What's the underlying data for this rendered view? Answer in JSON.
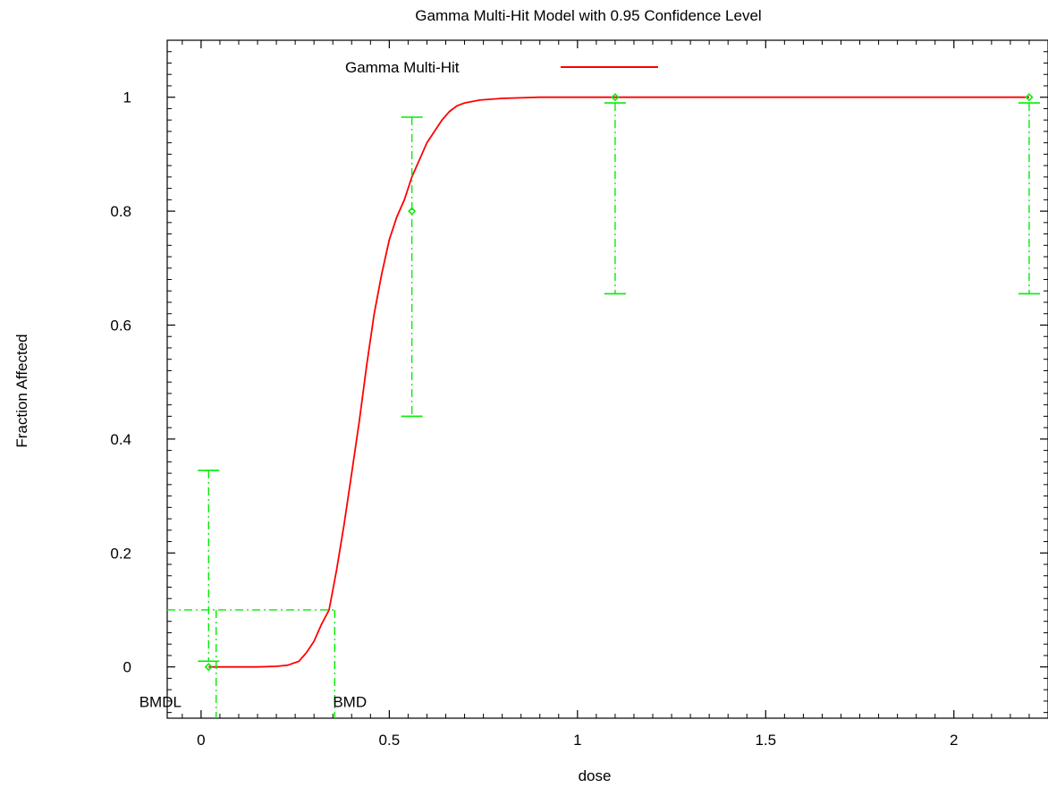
{
  "colors": {
    "fit": "#ff0000",
    "data": "#00ee00",
    "axis": "#000000",
    "background": "#ffffff"
  },
  "chart_data": {
    "type": "line",
    "title": "Gamma Multi-Hit Model with 0.95 Confidence Level",
    "xlabel": "dose",
    "ylabel": "Fraction Affected",
    "xlim": [
      -0.09,
      2.25
    ],
    "ylim": [
      -0.09,
      1.1
    ],
    "grid": false,
    "legend_position": "top",
    "x_ticks": [
      {
        "value": 0,
        "label": "0"
      },
      {
        "value": 0.5,
        "label": "0.5"
      },
      {
        "value": 1,
        "label": "1"
      },
      {
        "value": 1.5,
        "label": "1.5"
      },
      {
        "value": 2,
        "label": "2"
      }
    ],
    "y_ticks": [
      {
        "value": 0,
        "label": "0"
      },
      {
        "value": 0.2,
        "label": "0.2"
      },
      {
        "value": 0.4,
        "label": "0.4"
      },
      {
        "value": 0.6,
        "label": "0.6"
      },
      {
        "value": 0.8,
        "label": "0.8"
      },
      {
        "value": 1,
        "label": "1"
      }
    ],
    "series": [
      {
        "name": "Gamma Multi-Hit",
        "kind": "fit_curve",
        "color": "#ff0000",
        "points": [
          [
            0.02,
            0.0
          ],
          [
            0.1,
            0.0
          ],
          [
            0.15,
            0.0
          ],
          [
            0.2,
            0.001
          ],
          [
            0.23,
            0.003
          ],
          [
            0.26,
            0.01
          ],
          [
            0.28,
            0.025
          ],
          [
            0.3,
            0.045
          ],
          [
            0.32,
            0.075
          ],
          [
            0.34,
            0.1
          ],
          [
            0.36,
            0.17
          ],
          [
            0.38,
            0.25
          ],
          [
            0.4,
            0.34
          ],
          [
            0.42,
            0.43
          ],
          [
            0.44,
            0.53
          ],
          [
            0.46,
            0.62
          ],
          [
            0.48,
            0.69
          ],
          [
            0.5,
            0.75
          ],
          [
            0.52,
            0.79
          ],
          [
            0.54,
            0.82
          ],
          [
            0.56,
            0.86
          ],
          [
            0.58,
            0.89
          ],
          [
            0.6,
            0.92
          ],
          [
            0.62,
            0.94
          ],
          [
            0.64,
            0.96
          ],
          [
            0.66,
            0.975
          ],
          [
            0.68,
            0.985
          ],
          [
            0.7,
            0.99
          ],
          [
            0.74,
            0.995
          ],
          [
            0.8,
            0.998
          ],
          [
            0.9,
            1.0
          ],
          [
            1.0,
            1.0
          ],
          [
            1.5,
            1.0
          ],
          [
            2.0,
            1.0
          ],
          [
            2.2,
            1.0
          ]
        ]
      },
      {
        "name": "",
        "kind": "observed_with_ci",
        "color": "#00ee00",
        "points": [
          {
            "x": 0.02,
            "y": 0.0,
            "lower": 0.01,
            "upper": 0.345
          },
          {
            "x": 0.56,
            "y": 0.8,
            "lower": 0.44,
            "upper": 0.965
          },
          {
            "x": 1.1,
            "y": 1.0,
            "lower": 0.655,
            "upper": 0.99
          },
          {
            "x": 2.2,
            "y": 1.0,
            "lower": 0.655,
            "upper": 0.99
          }
        ]
      }
    ],
    "bmr": 0.1,
    "annotations": [
      {
        "label": "BMDL",
        "x": 0.04
      },
      {
        "label": "BMD",
        "x": 0.355
      }
    ]
  }
}
